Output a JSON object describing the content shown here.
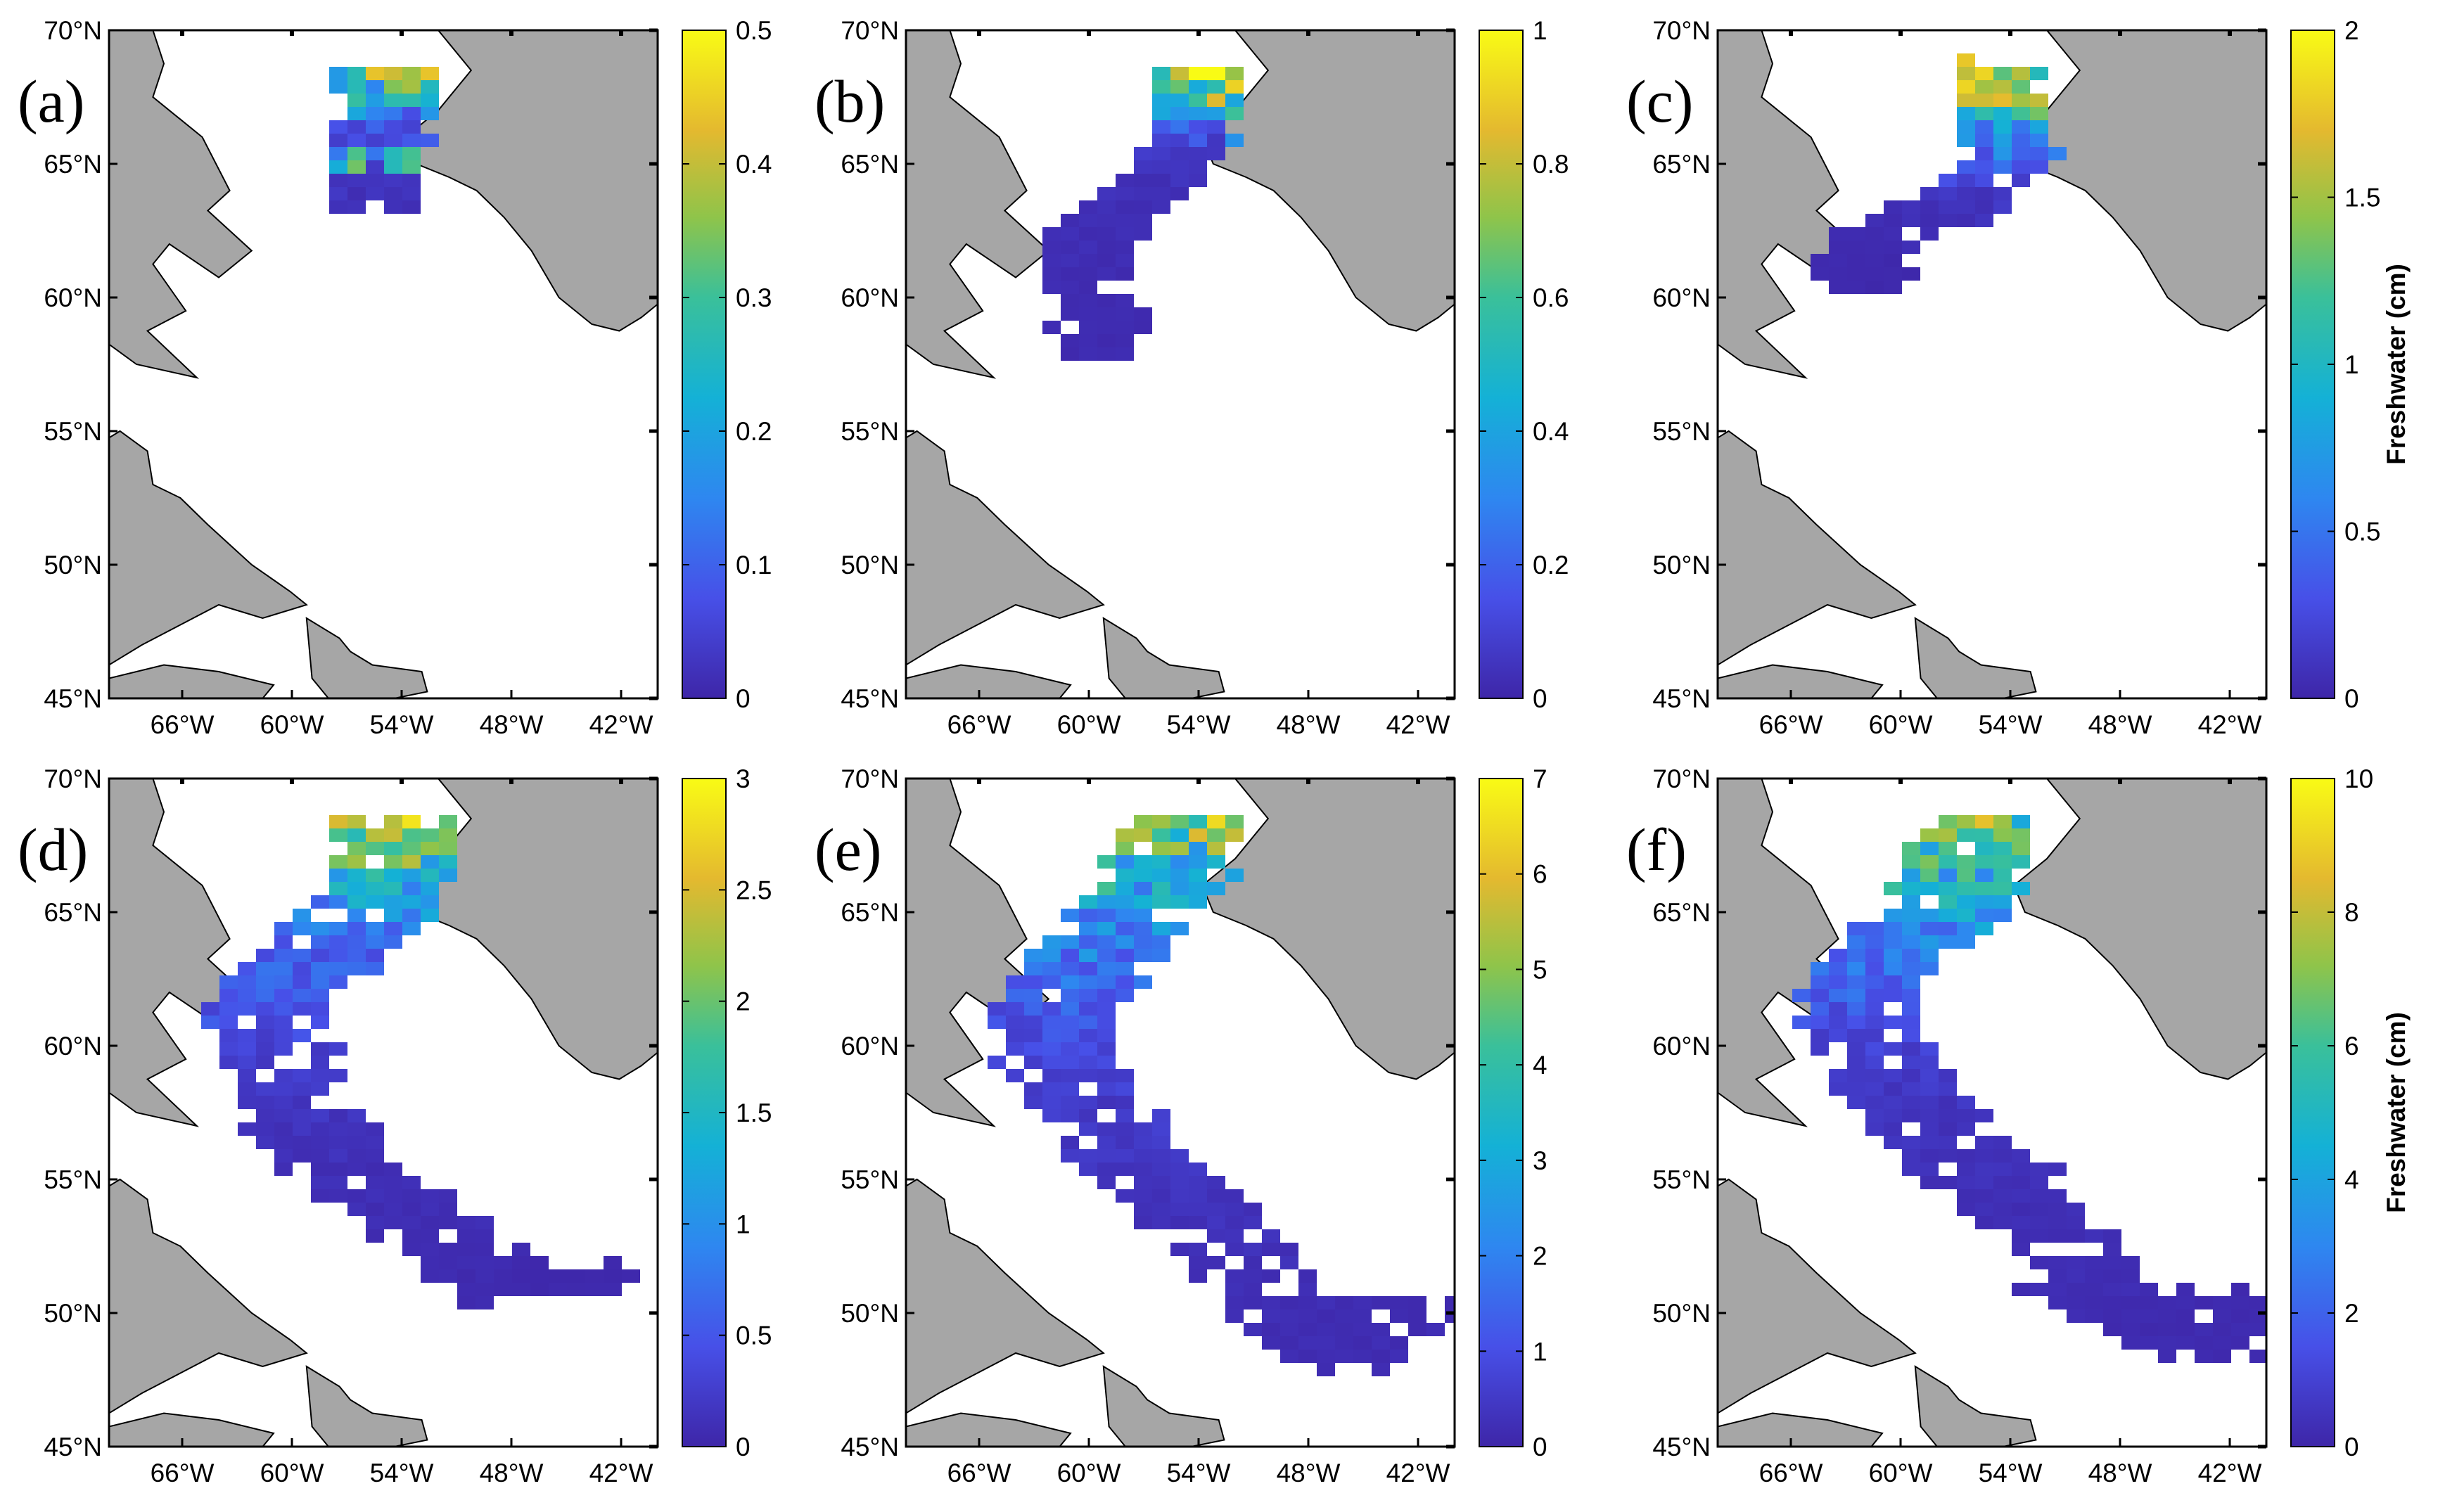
{
  "figure": {
    "colorbar_title": "Freshwater (cm)",
    "lat_ticks": [
      "70°N",
      "65°N",
      "60°N",
      "55°N",
      "50°N",
      "45°N"
    ],
    "lon_ticks": [
      "66°W",
      "60°W",
      "54°W",
      "48°W",
      "42°W"
    ],
    "land_color": "#a6a6a6",
    "ocean_color": "#ffffff",
    "colormap": "parula"
  },
  "panels": [
    {
      "label": "(a)",
      "cbar_ticks": [
        "0.5",
        "0.4",
        "0.3",
        "0.2",
        "0.1",
        "0"
      ],
      "show_cbar_title": false
    },
    {
      "label": "(b)",
      "cbar_ticks": [
        "1",
        "0.8",
        "0.6",
        "0.4",
        "0.2",
        "0"
      ],
      "show_cbar_title": false
    },
    {
      "label": "(c)",
      "cbar_ticks": [
        "2",
        "1.5",
        "1",
        "0.5",
        "0"
      ],
      "show_cbar_title": true
    },
    {
      "label": "(d)",
      "cbar_ticks": [
        "3",
        "2.5",
        "2",
        "1.5",
        "1",
        "0.5",
        "0"
      ],
      "show_cbar_title": false
    },
    {
      "label": "(e)",
      "cbar_ticks": [
        "7",
        "6",
        "5",
        "4",
        "3",
        "2",
        "1",
        "0"
      ],
      "show_cbar_title": false
    },
    {
      "label": "(f)",
      "cbar_ticks": [
        "10",
        "8",
        "6",
        "4",
        "2",
        "0"
      ],
      "show_cbar_title": true
    }
  ],
  "chart_data": {
    "type": "heatmap",
    "lat_range": [
      45,
      70
    ],
    "lon_range": [
      -70,
      -40
    ],
    "variable": "Freshwater (cm)",
    "panels": [
      {
        "label": "(a)",
        "cmax": 0.5,
        "cells": [
          [
            -56,
            68.5,
            0.3
          ],
          [
            -55,
            68.5,
            0.45
          ],
          [
            -54.5,
            68,
            0.4
          ],
          [
            -55.5,
            67.5,
            0.25
          ],
          [
            -55,
            67,
            0.2
          ],
          [
            -56,
            66.5,
            0.1
          ],
          [
            -55.5,
            66,
            0.08
          ],
          [
            -56.5,
            65.5,
            0.05
          ],
          [
            -55.5,
            65,
            0.4
          ],
          [
            -56,
            64.5,
            0.03
          ],
          [
            -55.5,
            64,
            0.02
          ]
        ]
      },
      {
        "label": "(b)",
        "cmax": 1,
        "cells": [
          [
            -55,
            68.5,
            0.95
          ],
          [
            -55,
            68,
            0.8
          ],
          [
            -55,
            67,
            0.5
          ],
          [
            -55,
            66,
            0.1
          ],
          [
            -56,
            65,
            0.05
          ],
          [
            -58,
            64,
            0.04
          ],
          [
            -60,
            63,
            0.03
          ],
          [
            -61,
            62,
            0.03
          ],
          [
            -60,
            60,
            0.02
          ],
          [
            -60,
            58,
            0.02
          ]
        ]
      },
      {
        "label": "(c)",
        "cmax": 2,
        "cells": [
          [
            -55,
            68.5,
            1.8
          ],
          [
            -55,
            67.5,
            1.6
          ],
          [
            -55,
            66.5,
            0.8
          ],
          [
            -54,
            65.5,
            0.6
          ],
          [
            -56,
            64.5,
            0.2
          ],
          [
            -58,
            63.5,
            0.1
          ],
          [
            -62,
            62.5,
            0.05
          ],
          [
            -63,
            61.5,
            0.03
          ],
          [
            -62,
            60.5,
            0.02
          ]
        ]
      },
      {
        "label": "(d)",
        "cmax": 3,
        "cells": [
          [
            -55,
            68.5,
            2.8
          ],
          [
            -55,
            67,
            1.8
          ],
          [
            -56,
            65.5,
            1.2
          ],
          [
            -58,
            64.5,
            0.8
          ],
          [
            -60,
            63,
            0.6
          ],
          [
            -62,
            62,
            0.6
          ],
          [
            -61,
            60,
            0.3
          ],
          [
            -60,
            58,
            0.2
          ],
          [
            -58,
            56,
            0.1
          ],
          [
            -55,
            54.5,
            0.1
          ],
          [
            -52,
            53,
            0.08
          ],
          [
            -48,
            51,
            0.05
          ],
          [
            -44,
            52,
            0.03
          ]
        ]
      },
      {
        "label": "(e)",
        "cmax": 7,
        "cells": [
          [
            -55,
            68.5,
            6.5
          ],
          [
            -56,
            67,
            4
          ],
          [
            -58,
            65,
            2.5
          ],
          [
            -60,
            63.5,
            2
          ],
          [
            -62,
            62,
            1.5
          ],
          [
            -63,
            60.5,
            1
          ],
          [
            -61,
            58.5,
            0.6
          ],
          [
            -59,
            56.5,
            0.5
          ],
          [
            -56,
            55,
            0.4
          ],
          [
            -53,
            53,
            0.3
          ],
          [
            -50,
            50,
            0.2
          ],
          [
            -46,
            48.5,
            0.2
          ],
          [
            -43,
            51,
            0.15
          ]
        ]
      },
      {
        "label": "(f)",
        "cmax": 10,
        "cells": [
          [
            -56,
            68.5,
            8
          ],
          [
            -57,
            67,
            6
          ],
          [
            -58,
            65,
            4
          ],
          [
            -61,
            64,
            3
          ],
          [
            -63,
            62,
            2
          ],
          [
            -62,
            60,
            1
          ],
          [
            -60,
            58,
            0.6
          ],
          [
            -58,
            56.5,
            0.5
          ],
          [
            -55,
            55,
            0.4
          ],
          [
            -52,
            53,
            0.3
          ],
          [
            -50,
            51,
            0.3
          ],
          [
            -47,
            50,
            0.2
          ],
          [
            -44,
            49,
            0.2
          ],
          [
            -43,
            51,
            0.15
          ]
        ]
      }
    ]
  }
}
